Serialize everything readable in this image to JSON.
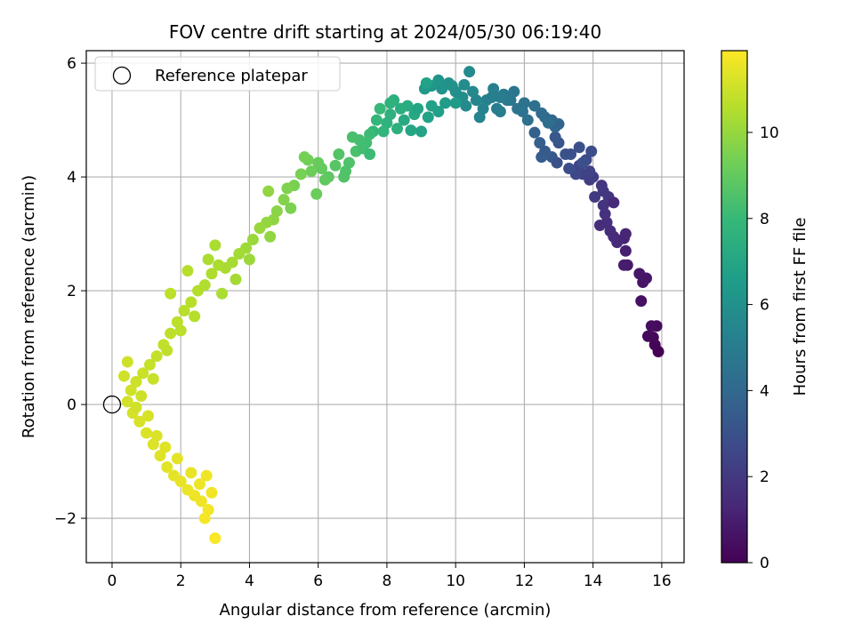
{
  "chart_data": {
    "type": "scatter",
    "title": "FOV centre drift starting at 2024/05/30 06:19:40",
    "xlabel": "Angular distance from reference (arcmin)",
    "ylabel": "Rotation from reference (arcmin)",
    "xlim": [
      -0.75,
      16.65
    ],
    "ylim": [
      -2.78,
      6.22
    ],
    "xticks": [
      0,
      2,
      4,
      6,
      8,
      10,
      12,
      14,
      16
    ],
    "yticks": [
      -2,
      0,
      2,
      4,
      6
    ],
    "xtick_labels": [
      "0",
      "2",
      "4",
      "6",
      "8",
      "10",
      "12",
      "14",
      "16"
    ],
    "ytick_labels": [
      "−2",
      "0",
      "2",
      "4",
      "6"
    ],
    "grid": true,
    "legend": {
      "position": "top-left",
      "entries": [
        "Reference platepar"
      ]
    },
    "reference_point": {
      "x": 0,
      "y": 0
    },
    "colorbar": {
      "label": "Hours from first FF file",
      "colormap": "viridis",
      "range": [
        0,
        11.9
      ],
      "ticks": [
        0,
        2,
        4,
        6,
        8,
        10
      ],
      "tick_labels": [
        "0",
        "2",
        "4",
        "6",
        "8",
        "10"
      ]
    },
    "colormap_stops": [
      "#440154",
      "#482878",
      "#3e4989",
      "#31688e",
      "#26828e",
      "#1f9e89",
      "#35b779",
      "#6ece58",
      "#b5de2b",
      "#fde725"
    ],
    "points": [
      [
        15.9,
        0.93,
        0.0
      ],
      [
        15.8,
        1.05,
        0.1
      ],
      [
        15.75,
        1.18,
        0.2
      ],
      [
        15.6,
        1.2,
        0.3
      ],
      [
        15.85,
        1.38,
        0.35
      ],
      [
        15.7,
        1.38,
        0.45
      ],
      [
        15.4,
        1.82,
        0.55
      ],
      [
        15.45,
        2.15,
        0.65
      ],
      [
        15.55,
        2.22,
        0.75
      ],
      [
        15.0,
        2.45,
        0.85
      ],
      [
        14.9,
        2.45,
        0.95
      ],
      [
        14.95,
        2.7,
        1.05
      ],
      [
        14.9,
        2.92,
        1.15
      ],
      [
        14.95,
        3.0,
        1.25
      ],
      [
        14.7,
        2.85,
        1.35
      ],
      [
        14.6,
        2.95,
        1.45
      ],
      [
        14.5,
        3.05,
        1.5
      ],
      [
        14.4,
        3.2,
        1.6
      ],
      [
        14.35,
        3.35,
        1.7
      ],
      [
        14.3,
        3.5,
        1.8
      ],
      [
        14.45,
        3.65,
        1.85
      ],
      [
        14.3,
        3.75,
        1.95
      ],
      [
        14.05,
        3.65,
        2.05
      ],
      [
        14.0,
        4.0,
        2.15
      ],
      [
        13.9,
        3.95,
        2.25
      ],
      [
        13.7,
        4.05,
        2.35
      ],
      [
        13.9,
        4.1,
        2.45
      ],
      [
        13.6,
        4.2,
        2.5
      ],
      [
        13.5,
        4.05,
        2.6
      ],
      [
        13.8,
        4.3,
        2.7
      ],
      [
        13.95,
        4.45,
        2.8
      ],
      [
        13.6,
        4.52,
        2.9
      ],
      [
        13.7,
        4.25,
        2.95
      ],
      [
        13.2,
        4.4,
        3.05
      ],
      [
        13.0,
        4.6,
        3.15
      ],
      [
        12.9,
        4.7,
        3.25
      ],
      [
        12.8,
        4.35,
        3.35
      ],
      [
        12.6,
        4.45,
        3.45
      ],
      [
        12.5,
        4.35,
        3.5
      ],
      [
        12.45,
        4.6,
        3.6
      ],
      [
        12.3,
        4.78,
        3.7
      ],
      [
        12.9,
        4.88,
        3.8
      ],
      [
        13.0,
        4.93,
        3.85
      ],
      [
        12.8,
        5.0,
        3.95
      ],
      [
        12.6,
        5.05,
        4.05
      ],
      [
        12.5,
        5.12,
        4.15
      ],
      [
        12.7,
        4.95,
        4.25
      ],
      [
        12.3,
        5.25,
        4.35
      ],
      [
        12.0,
        5.3,
        4.45
      ],
      [
        11.8,
        5.2,
        4.55
      ],
      [
        11.6,
        5.35,
        4.6
      ],
      [
        11.7,
        5.5,
        4.7
      ],
      [
        11.4,
        5.45,
        4.8
      ],
      [
        11.5,
        5.35,
        4.9
      ],
      [
        11.2,
        5.2,
        5.0
      ],
      [
        11.3,
        5.4,
        5.1
      ],
      [
        11.1,
        5.55,
        5.2
      ],
      [
        10.9,
        5.35,
        5.25
      ],
      [
        10.8,
        5.2,
        5.35
      ],
      [
        10.6,
        5.35,
        5.45
      ],
      [
        10.5,
        5.5,
        5.55
      ],
      [
        10.4,
        5.85,
        5.65
      ],
      [
        10.3,
        5.25,
        5.7
      ],
      [
        10.2,
        5.4,
        5.8
      ],
      [
        10.0,
        5.5,
        5.9
      ],
      [
        9.8,
        5.65,
        6.0
      ],
      [
        9.6,
        5.55,
        6.1
      ],
      [
        9.5,
        5.7,
        6.2
      ],
      [
        9.3,
        5.6,
        6.3
      ],
      [
        9.1,
        5.55,
        6.35
      ],
      [
        10.0,
        5.3,
        6.45
      ],
      [
        9.7,
        5.3,
        6.55
      ],
      [
        9.5,
        5.15,
        6.65
      ],
      [
        9.3,
        5.25,
        6.75
      ],
      [
        9.2,
        5.05,
        6.8
      ],
      [
        9.0,
        4.8,
        6.9
      ],
      [
        8.7,
        4.82,
        7.0
      ],
      [
        8.8,
        5.1,
        7.1
      ],
      [
        8.5,
        5.0,
        7.2
      ],
      [
        8.6,
        5.25,
        7.3
      ],
      [
        8.4,
        5.2,
        7.4
      ],
      [
        8.2,
        5.35,
        7.45
      ],
      [
        8.1,
        5.1,
        7.55
      ],
      [
        8.0,
        4.95,
        7.65
      ],
      [
        7.9,
        4.8,
        7.75
      ],
      [
        7.7,
        5.0,
        7.85
      ],
      [
        7.6,
        4.8,
        7.9
      ],
      [
        7.8,
        5.2,
        8.0
      ],
      [
        7.5,
        4.75,
        8.1
      ],
      [
        7.4,
        4.6,
        8.2
      ],
      [
        7.2,
        4.65,
        8.3
      ],
      [
        7.0,
        4.7,
        8.4
      ],
      [
        7.1,
        4.45,
        8.45
      ],
      [
        6.9,
        4.25,
        8.55
      ],
      [
        6.6,
        4.4,
        8.65
      ],
      [
        6.5,
        4.2,
        8.75
      ],
      [
        6.3,
        4.0,
        8.85
      ],
      [
        6.2,
        3.95,
        8.95
      ],
      [
        6.1,
        4.15,
        9.0
      ],
      [
        6.0,
        4.25,
        9.1
      ],
      [
        5.8,
        4.1,
        9.2
      ],
      [
        5.7,
        4.3,
        9.3
      ],
      [
        5.5,
        4.05,
        9.4
      ],
      [
        5.3,
        3.85,
        9.45
      ],
      [
        5.1,
        3.8,
        9.55
      ],
      [
        5.0,
        3.6,
        9.65
      ],
      [
        4.8,
        3.4,
        9.75
      ],
      [
        4.7,
        3.25,
        9.85
      ],
      [
        4.5,
        3.2,
        9.95
      ],
      [
        4.3,
        3.1,
        10.05
      ],
      [
        4.1,
        2.9,
        10.1
      ],
      [
        3.9,
        2.75,
        10.15
      ],
      [
        3.7,
        2.65,
        10.25
      ],
      [
        3.5,
        2.5,
        10.3
      ],
      [
        3.3,
        2.4,
        10.35
      ],
      [
        3.1,
        2.45,
        10.4
      ],
      [
        2.9,
        2.3,
        10.45
      ],
      [
        2.7,
        2.1,
        10.5
      ],
      [
        2.5,
        2.0,
        10.55
      ],
      [
        2.3,
        1.8,
        10.6
      ],
      [
        2.1,
        1.65,
        10.65
      ],
      [
        1.9,
        1.45,
        10.7
      ],
      [
        1.7,
        1.25,
        10.75
      ],
      [
        1.5,
        1.05,
        10.8
      ],
      [
        1.3,
        0.85,
        10.85
      ],
      [
        1.1,
        0.7,
        10.9
      ],
      [
        0.9,
        0.55,
        10.95
      ],
      [
        0.7,
        0.4,
        11.0
      ],
      [
        0.55,
        0.25,
        11.05
      ],
      [
        0.45,
        0.05,
        11.1
      ],
      [
        0.6,
        -0.15,
        11.15
      ],
      [
        0.8,
        -0.3,
        11.2
      ],
      [
        1.0,
        -0.5,
        11.25
      ],
      [
        1.2,
        -0.7,
        11.3
      ],
      [
        1.4,
        -0.9,
        11.35
      ],
      [
        1.6,
        -1.1,
        11.4
      ],
      [
        1.8,
        -1.25,
        11.45
      ],
      [
        2.0,
        -1.35,
        11.5
      ],
      [
        2.2,
        -1.5,
        11.55
      ],
      [
        2.4,
        -1.6,
        11.6
      ],
      [
        2.6,
        -1.7,
        11.65
      ],
      [
        2.8,
        -1.85,
        11.7
      ],
      [
        2.7,
        -2.0,
        11.75
      ],
      [
        3.0,
        -2.35,
        11.85
      ],
      [
        14.2,
        3.15,
        1.55
      ],
      [
        14.6,
        3.55,
        1.4
      ],
      [
        13.3,
        4.15,
        2.8
      ],
      [
        12.95,
        4.25,
        3.0
      ],
      [
        11.95,
        5.15,
        4.5
      ],
      [
        11.05,
        5.4,
        5.15
      ],
      [
        10.7,
        5.05,
        5.4
      ],
      [
        9.9,
        5.6,
        6.05
      ],
      [
        8.9,
        5.2,
        6.95
      ],
      [
        8.3,
        4.85,
        7.5
      ],
      [
        7.3,
        4.5,
        8.25
      ],
      [
        6.75,
        4.0,
        8.6
      ],
      [
        5.95,
        3.7,
        9.15
      ],
      [
        5.2,
        3.45,
        9.5
      ],
      [
        4.6,
        2.95,
        9.9
      ],
      [
        4.0,
        2.55,
        10.12
      ],
      [
        3.6,
        2.2,
        10.28
      ],
      [
        3.2,
        1.95,
        10.38
      ],
      [
        2.8,
        2.55,
        10.42
      ],
      [
        2.4,
        1.55,
        10.58
      ],
      [
        2.0,
        1.3,
        10.68
      ],
      [
        1.6,
        0.95,
        10.78
      ],
      [
        1.2,
        0.45,
        10.9
      ],
      [
        0.85,
        0.15,
        11.0
      ],
      [
        0.7,
        -0.05,
        11.08
      ],
      [
        1.05,
        -0.2,
        11.18
      ],
      [
        1.3,
        -0.55,
        11.28
      ],
      [
        1.55,
        -0.75,
        11.35
      ],
      [
        1.9,
        -0.95,
        11.42
      ],
      [
        2.3,
        -1.2,
        11.52
      ],
      [
        2.55,
        -1.4,
        11.6
      ],
      [
        2.9,
        -1.55,
        11.68
      ],
      [
        2.75,
        -1.25,
        11.62
      ],
      [
        0.45,
        0.75,
        11.02
      ],
      [
        0.35,
        0.5,
        11.06
      ],
      [
        1.7,
        1.95,
        10.7
      ],
      [
        2.2,
        2.35,
        10.6
      ],
      [
        3.0,
        2.8,
        10.4
      ],
      [
        4.55,
        3.75,
        9.9
      ],
      [
        5.6,
        4.35,
        9.35
      ],
      [
        6.8,
        4.1,
        8.55
      ],
      [
        7.5,
        4.4,
        8.1
      ],
      [
        8.1,
        5.3,
        7.6
      ],
      [
        9.15,
        5.65,
        6.8
      ],
      [
        10.25,
        5.62,
        5.75
      ],
      [
        11.3,
        5.15,
        5.05
      ],
      [
        12.1,
        5.0,
        4.4
      ],
      [
        13.35,
        4.4,
        2.9
      ],
      [
        14.25,
        3.85,
        1.9
      ],
      [
        15.35,
        2.3,
        0.7
      ]
    ]
  }
}
